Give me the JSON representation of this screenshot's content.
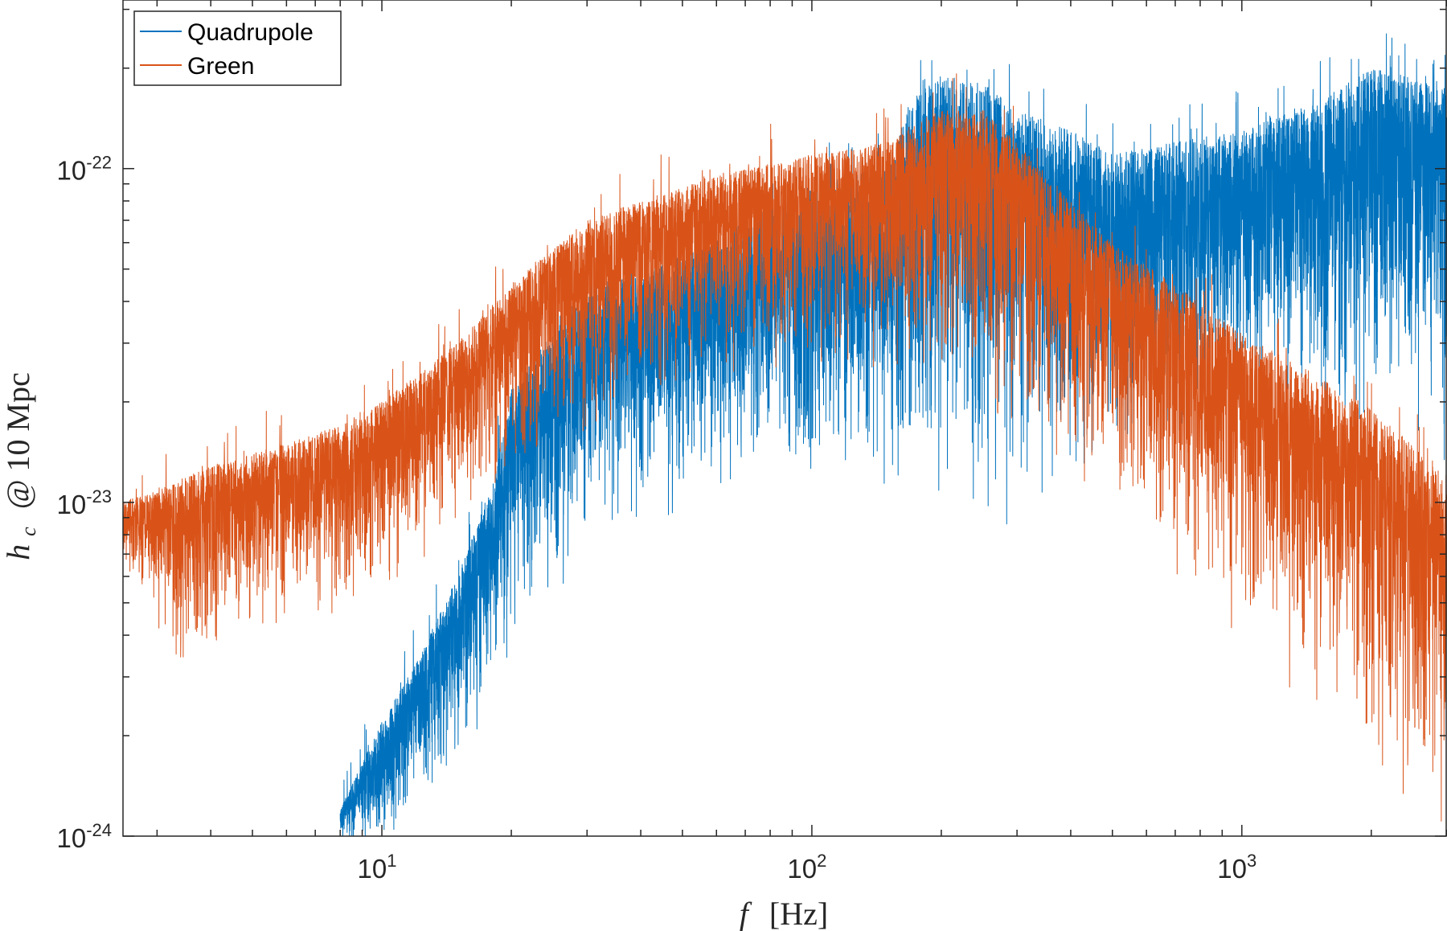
{
  "chart_data": {
    "type": "line",
    "title": "",
    "xlabel": "f  [Hz]",
    "xlabel_var": "f",
    "xlabel_unit": "[Hz]",
    "ylabel": "h_c @ 10 Mpc",
    "ylabel_var": "h",
    "ylabel_sub": "c",
    "ylabel_rest": "@ 10 Mpc",
    "xscale": "log",
    "yscale": "log",
    "xlim": [
      2.5,
      3000
    ],
    "ylim": [
      1e-24,
      3.2e-22
    ],
    "xticks": [
      {
        "value": 10,
        "base": "10",
        "exp": "1"
      },
      {
        "value": 100,
        "base": "10",
        "exp": "2"
      },
      {
        "value": 1000,
        "base": "10",
        "exp": "3"
      }
    ],
    "yticks": [
      {
        "value": 1e-24,
        "base": "10",
        "exp": "-24"
      },
      {
        "value": 1e-23,
        "base": "10",
        "exp": "-23"
      },
      {
        "value": 1e-22,
        "base": "10",
        "exp": "-22"
      }
    ],
    "legend_position": "top-left",
    "series": [
      {
        "name": "Quadrupole",
        "color": "#0072BD",
        "note": "noisy spectrum; trend points (upper envelope, lower envelope)",
        "x": [
          8,
          10,
          12,
          15,
          18,
          20,
          25,
          30,
          40,
          50,
          70,
          100,
          150,
          170,
          200,
          250,
          300,
          400,
          500,
          700,
          1000,
          1500,
          2000,
          2500,
          3000
        ],
        "upper": [
          1.2e-24,
          2.2e-24,
          3.3e-24,
          6e-24,
          1.1e-23,
          2.2e-23,
          3.2e-23,
          4.5e-23,
          4.8e-23,
          5.5e-23,
          7e-23,
          9e-23,
          1e-22,
          1.6e-22,
          1.9e-22,
          1.8e-22,
          1.5e-22,
          1.3e-22,
          1.1e-22,
          1.2e-22,
          1.3e-22,
          1.6e-22,
          2e-22,
          1.9e-22,
          1.7e-22
        ],
        "lower": [
          1e-24,
          1e-24,
          1.3e-24,
          2e-24,
          3e-24,
          5e-24,
          7e-24,
          1e-23,
          1.2e-23,
          1.3e-23,
          1.5e-23,
          1.6e-23,
          1.6e-23,
          1.6e-23,
          1.6e-23,
          1.5e-23,
          1.5e-23,
          1.6e-23,
          1.8e-23,
          2.2e-23,
          2.5e-23,
          2.6e-23,
          2.5e-23,
          2.3e-23,
          1.8e-23
        ]
      },
      {
        "name": "Green",
        "color": "#D95319",
        "note": "noisy spectrum; trend points (upper envelope, lower envelope)",
        "x": [
          2.5,
          3,
          3.5,
          4,
          5,
          6,
          8,
          10,
          12,
          15,
          20,
          30,
          40,
          60,
          100,
          150,
          200,
          250,
          300,
          400,
          500,
          700,
          1000,
          1500,
          2000,
          3000
        ],
        "upper": [
          1e-23,
          1.1e-23,
          1.2e-23,
          1.3e-23,
          1.4e-23,
          1.5e-23,
          1.7e-23,
          2e-23,
          2.4e-23,
          3e-23,
          4.5e-23,
          7e-23,
          8e-23,
          9.5e-23,
          1.1e-22,
          1.2e-22,
          1.5e-22,
          1.5e-22,
          1.2e-22,
          8e-23,
          6e-23,
          4.5e-23,
          3.2e-23,
          2.4e-23,
          1.9e-23,
          1.2e-23
        ],
        "lower": [
          6.5e-24,
          5e-24,
          3.5e-24,
          4e-24,
          5e-24,
          5.5e-24,
          5.5e-24,
          6.5e-24,
          7.5e-24,
          1e-23,
          1.4e-23,
          2e-23,
          2.6e-23,
          3e-23,
          3.2e-23,
          3e-23,
          3e-23,
          2.7e-23,
          2.3e-23,
          1.7e-23,
          1.3e-23,
          8e-24,
          5.5e-24,
          3.5e-24,
          2.5e-24,
          1.3e-24
        ]
      }
    ]
  }
}
